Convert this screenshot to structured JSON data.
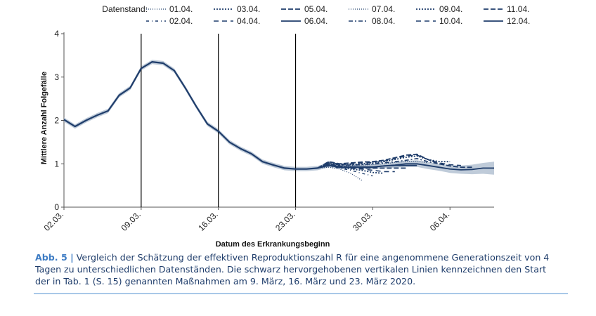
{
  "legend_title": "Datenstand:",
  "caption": {
    "label": "Abb. 5 |",
    "text": "Vergleich der Schätzung der effektiven Reproduktionszahl R für eine angenommene Generationszeit von 4 Tagen zu unterschiedlichen Datenständen. Die schwarz hervorgehobenen vertikalen Linien kennzeichnen den Start der in Tab. 1 (S. 15) genannten Maßnahmen am 9. März, 16. März und 23. März 2020."
  },
  "colors": {
    "series": "#1f3d6b",
    "band": "#a9b9cc",
    "vline": "#000000",
    "axis": "#555555",
    "caption_label": "#3f7dc4"
  },
  "chart_data": {
    "type": "line",
    "title": "",
    "xlabel": "Datum des Erkrankungsbeginn",
    "ylabel": "Mittlere Anzahl Folgefälle",
    "xlim": [
      "2020-03-02",
      "2020-04-10"
    ],
    "ylim": [
      0,
      4
    ],
    "yticks": [
      0,
      1,
      2,
      3,
      4
    ],
    "xticks": [
      {
        "date": "2020-03-02",
        "label": "02.03."
      },
      {
        "date": "2020-03-09",
        "label": "09.03."
      },
      {
        "date": "2020-03-16",
        "label": "16.03."
      },
      {
        "date": "2020-03-23",
        "label": "23.03."
      },
      {
        "date": "2020-03-30",
        "label": "30.03."
      },
      {
        "date": "2020-04-06",
        "label": "06.04."
      }
    ],
    "vlines": [
      "2020-03-09",
      "2020-03-16",
      "2020-03-23"
    ],
    "grid": false,
    "legend_position": "top",
    "common_curve": {
      "x": [
        "2020-03-02",
        "2020-03-03",
        "2020-03-04",
        "2020-03-05",
        "2020-03-06",
        "2020-03-07",
        "2020-03-08",
        "2020-03-09",
        "2020-03-10",
        "2020-03-11",
        "2020-03-12",
        "2020-03-13",
        "2020-03-14",
        "2020-03-15",
        "2020-03-16",
        "2020-03-17",
        "2020-03-18",
        "2020-03-19",
        "2020-03-20",
        "2020-03-21",
        "2020-03-22",
        "2020-03-23",
        "2020-03-24",
        "2020-03-25"
      ],
      "y": [
        2.02,
        1.86,
        2.0,
        2.12,
        2.22,
        2.58,
        2.75,
        3.2,
        3.35,
        3.32,
        3.15,
        2.75,
        2.32,
        1.92,
        1.75,
        1.5,
        1.35,
        1.23,
        1.05,
        0.97,
        0.9,
        0.88,
        0.88,
        0.9
      ]
    },
    "series": [
      {
        "name": "01.04.",
        "style": "fine-dot",
        "x": [
          "2020-03-25",
          "2020-03-26",
          "2020-03-27",
          "2020-03-28",
          "2020-03-29"
        ],
        "y": [
          0.9,
          0.92,
          0.88,
          0.78,
          0.62
        ]
      },
      {
        "name": "02.04.",
        "style": "dash-dot-sparse",
        "x": [
          "2020-03-25",
          "2020-03-26",
          "2020-03-27",
          "2020-03-28",
          "2020-03-29",
          "2020-03-30"
        ],
        "y": [
          0.9,
          0.95,
          0.9,
          0.85,
          0.78,
          0.72
        ]
      },
      {
        "name": "03.04.",
        "style": "dot",
        "x": [
          "2020-03-25",
          "2020-03-26",
          "2020-03-27",
          "2020-03-28",
          "2020-03-29",
          "2020-03-30",
          "2020-03-31"
        ],
        "y": [
          0.9,
          0.98,
          0.92,
          0.88,
          0.85,
          0.8,
          0.78
        ]
      },
      {
        "name": "04.04.",
        "style": "long-dash-sparse",
        "x": [
          "2020-03-25",
          "2020-03-26",
          "2020-03-27",
          "2020-03-28",
          "2020-03-29",
          "2020-03-30",
          "2020-03-31",
          "2020-04-01"
        ],
        "y": [
          0.9,
          0.98,
          0.93,
          0.9,
          0.88,
          0.85,
          0.82,
          0.82
        ]
      },
      {
        "name": "05.04.",
        "style": "long-dash",
        "x": [
          "2020-03-25",
          "2020-03-26",
          "2020-03-27",
          "2020-03-28",
          "2020-03-29",
          "2020-03-30",
          "2020-03-31",
          "2020-04-01",
          "2020-04-02"
        ],
        "y": [
          0.9,
          1.0,
          0.95,
          0.92,
          0.9,
          0.9,
          0.9,
          0.9,
          0.9
        ]
      },
      {
        "name": "06.04.",
        "style": "solid",
        "x": [
          "2020-03-25",
          "2020-03-26",
          "2020-03-27",
          "2020-03-28",
          "2020-03-29",
          "2020-03-30",
          "2020-03-31",
          "2020-04-01",
          "2020-04-02",
          "2020-04-03"
        ],
        "y": [
          0.9,
          0.96,
          0.92,
          0.92,
          0.92,
          0.92,
          0.95,
          0.96,
          0.96,
          0.96
        ]
      },
      {
        "name": "07.04.",
        "style": "fine-dot",
        "x": [
          "2020-03-25",
          "2020-03-26",
          "2020-03-27",
          "2020-03-28",
          "2020-03-29",
          "2020-03-30",
          "2020-03-31",
          "2020-04-01",
          "2020-04-02",
          "2020-04-03",
          "2020-04-04"
        ],
        "y": [
          0.9,
          1.0,
          0.95,
          0.95,
          0.97,
          0.98,
          1.0,
          1.03,
          1.05,
          1.06,
          1.02
        ]
      },
      {
        "name": "08.04.",
        "style": "dash-dot",
        "x": [
          "2020-03-25",
          "2020-03-26",
          "2020-03-27",
          "2020-03-28",
          "2020-03-29",
          "2020-03-30",
          "2020-03-31",
          "2020-04-01",
          "2020-04-02",
          "2020-04-03",
          "2020-04-04",
          "2020-04-05"
        ],
        "y": [
          0.9,
          1.02,
          0.97,
          0.97,
          0.98,
          1.0,
          1.02,
          1.05,
          1.08,
          1.12,
          1.05,
          1.0
        ]
      },
      {
        "name": "09.04.",
        "style": "dot",
        "x": [
          "2020-03-25",
          "2020-03-26",
          "2020-03-27",
          "2020-03-28",
          "2020-03-29",
          "2020-03-30",
          "2020-03-31",
          "2020-04-01",
          "2020-04-02",
          "2020-04-03",
          "2020-04-04",
          "2020-04-05",
          "2020-04-06"
        ],
        "y": [
          0.9,
          1.03,
          0.98,
          0.98,
          1.0,
          1.02,
          1.05,
          1.1,
          1.15,
          1.18,
          1.1,
          1.05,
          1.05
        ]
      },
      {
        "name": "10.04.",
        "style": "long-dash-sparse",
        "x": [
          "2020-03-25",
          "2020-03-26",
          "2020-03-27",
          "2020-03-28",
          "2020-03-29",
          "2020-03-30",
          "2020-03-31",
          "2020-04-01",
          "2020-04-02",
          "2020-04-03",
          "2020-04-04",
          "2020-04-05",
          "2020-04-06",
          "2020-04-07"
        ],
        "y": [
          0.9,
          1.04,
          0.99,
          1.0,
          1.02,
          1.03,
          1.06,
          1.12,
          1.18,
          1.2,
          1.1,
          1.02,
          0.98,
          0.96
        ]
      },
      {
        "name": "11.04.",
        "style": "long-dash",
        "x": [
          "2020-03-25",
          "2020-03-26",
          "2020-03-27",
          "2020-03-28",
          "2020-03-29",
          "2020-03-30",
          "2020-03-31",
          "2020-04-01",
          "2020-04-02",
          "2020-04-03",
          "2020-04-04",
          "2020-04-05",
          "2020-04-06",
          "2020-04-07",
          "2020-04-08"
        ],
        "y": [
          0.9,
          1.05,
          1.0,
          1.02,
          1.04,
          1.05,
          1.08,
          1.14,
          1.2,
          1.22,
          1.1,
          1.0,
          0.95,
          0.92,
          0.92
        ]
      },
      {
        "name": "12.04.",
        "style": "solid",
        "x": [
          "2020-03-25",
          "2020-03-26",
          "2020-03-27",
          "2020-03-28",
          "2020-03-29",
          "2020-03-30",
          "2020-03-31",
          "2020-04-01",
          "2020-04-02",
          "2020-04-03",
          "2020-04-04",
          "2020-04-05",
          "2020-04-06",
          "2020-04-07",
          "2020-04-08",
          "2020-04-09",
          "2020-04-10"
        ],
        "y": [
          0.9,
          0.97,
          0.93,
          0.93,
          0.93,
          0.93,
          0.95,
          0.97,
          1.0,
          1.0,
          0.96,
          0.92,
          0.88,
          0.86,
          0.87,
          0.9,
          0.9
        ],
        "band": {
          "lower": [
            0.85,
            0.92,
            0.88,
            0.88,
            0.88,
            0.88,
            0.9,
            0.91,
            0.93,
            0.93,
            0.88,
            0.84,
            0.79,
            0.77,
            0.76,
            0.77,
            0.75
          ],
          "upper": [
            0.95,
            1.02,
            0.99,
            0.99,
            0.99,
            0.99,
            1.01,
            1.04,
            1.07,
            1.08,
            1.04,
            1.0,
            0.97,
            0.96,
            0.98,
            1.02,
            1.05
          ]
        }
      }
    ]
  }
}
